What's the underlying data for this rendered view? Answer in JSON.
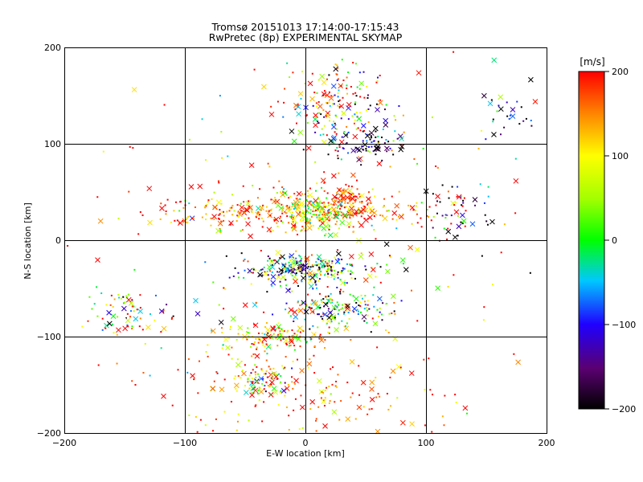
{
  "chart_data": {
    "type": "scatter",
    "title": "Tromsø 20151013 17:14:00-17:15:43",
    "subtitle": "RwPretec (8p) EXPERIMENTAL SKYMAP",
    "xlabel": "E-W location [km]",
    "ylabel": "N-S location [km]",
    "xlim": [
      -200,
      200
    ],
    "ylim": [
      -200,
      200
    ],
    "xticks": [
      -200,
      -100,
      0,
      100,
      200
    ],
    "yticks": [
      -200,
      -100,
      0,
      100,
      200
    ],
    "grid": true,
    "colorbar": {
      "label": "[m/s]",
      "min": -200,
      "max": 200,
      "ticks": [
        200,
        100,
        0,
        -100,
        -200
      ],
      "colormap": "black-purple-blue-cyan-green-yellow-orange-red"
    },
    "marker_styles": [
      "dot",
      "cross"
    ],
    "clusters": [
      {
        "x": 0,
        "y": 30,
        "sx": 60,
        "sy": 10,
        "n": 360,
        "vmean": 160,
        "vspread": 80
      },
      {
        "x": 10,
        "y": 30,
        "sx": 14,
        "sy": 10,
        "n": 140,
        "vmean": 60,
        "vspread": 70
      },
      {
        "x": 35,
        "y": 45,
        "sx": 10,
        "sy": 8,
        "n": 70,
        "vmean": 170,
        "vspread": 40
      },
      {
        "x": 0,
        "y": -30,
        "sx": 25,
        "sy": 8,
        "n": 260,
        "vmean": -60,
        "vspread": 140
      },
      {
        "x": 25,
        "y": -72,
        "sx": 25,
        "sy": 10,
        "n": 160,
        "vmean": 0,
        "vspread": 150
      },
      {
        "x": -25,
        "y": -100,
        "sx": 22,
        "sy": 8,
        "n": 130,
        "vmean": 120,
        "vspread": 100
      },
      {
        "x": -35,
        "y": -145,
        "sx": 10,
        "sy": 10,
        "n": 80,
        "vmean": 100,
        "vspread": 150
      },
      {
        "x": 25,
        "y": 140,
        "sx": 20,
        "sy": 25,
        "n": 180,
        "vmean": 60,
        "vspread": 180
      },
      {
        "x": 45,
        "y": 100,
        "sx": 20,
        "sy": 10,
        "n": 80,
        "vmean": -150,
        "vspread": 80
      },
      {
        "x": -150,
        "y": -75,
        "sx": 18,
        "sy": 12,
        "n": 70,
        "vmean": 50,
        "vspread": 150
      },
      {
        "x": 130,
        "y": 30,
        "sx": 15,
        "sy": 15,
        "n": 40,
        "vmean": -150,
        "vspread": 100
      },
      {
        "x": 165,
        "y": 130,
        "sx": 15,
        "sy": 15,
        "n": 30,
        "vmean": -150,
        "vspread": 100
      },
      {
        "x": 0,
        "y": -160,
        "sx": 60,
        "sy": 25,
        "n": 160,
        "vmean": 160,
        "vspread": 60
      },
      {
        "x": 0,
        "y": 0,
        "sx": 100,
        "sy": 100,
        "n": 200,
        "vmean": 120,
        "vspread": 150
      }
    ]
  }
}
